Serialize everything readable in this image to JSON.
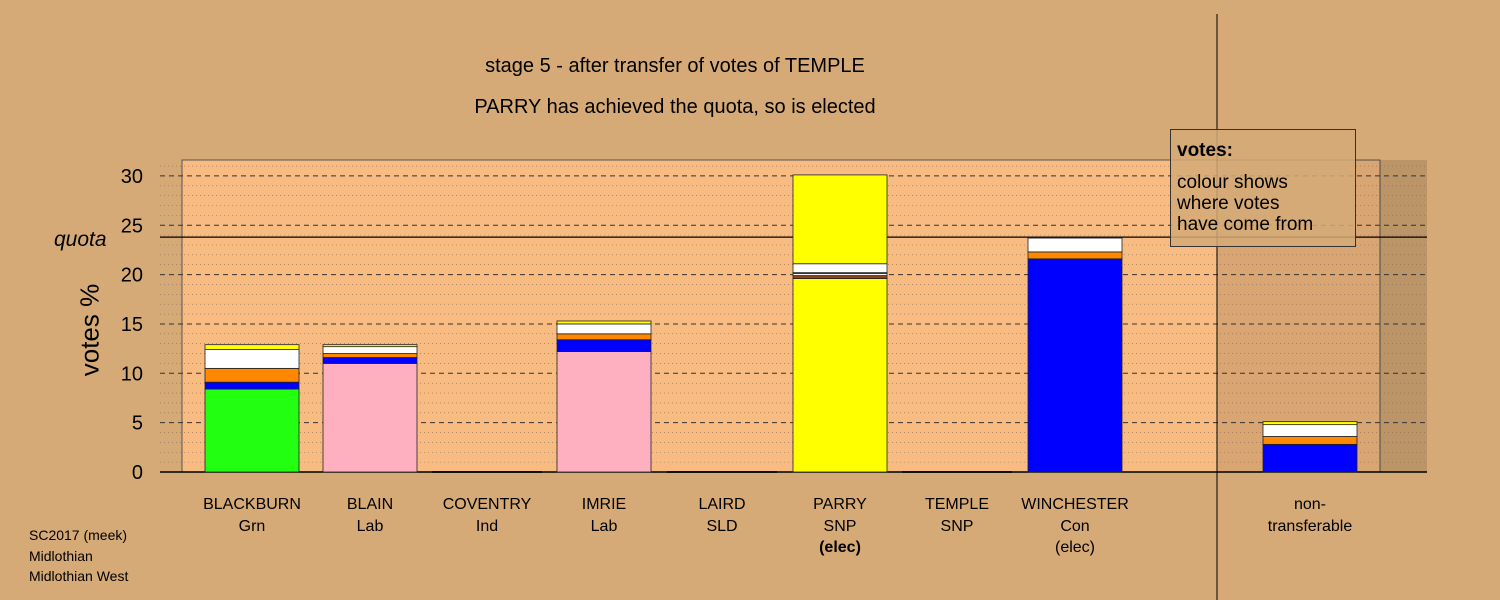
{
  "header": {
    "title": "stage 5 - after transfer of votes of TEMPLE",
    "subtitle": "PARRY has achieved the quota, so is elected"
  },
  "footer": {
    "line1": "SC2017 (meek)",
    "line2": "Midlothian",
    "line3": "Midlothian West"
  },
  "legend": {
    "title": "votes:",
    "text": [
      "colour shows",
      "where votes",
      "have come from"
    ]
  },
  "colors": {
    "background": "#d5aa77",
    "plot_area": "#f8bc82",
    "green": "#22ff11",
    "blue": "#0000ff",
    "orange": "#ff8800",
    "white": "#ffffff",
    "yellow": "#ffff00",
    "pink": "#ffb0c0",
    "brown": "#8b4513"
  },
  "chart_data": {
    "type": "bar",
    "stacked": true,
    "title": "stage 5 - after transfer of votes of TEMPLE",
    "subtitle": "PARRY has achieved the quota, so is elected",
    "ylabel": "votes %",
    "ylim": [
      0,
      32
    ],
    "yticks": [
      0,
      5,
      10,
      15,
      20,
      25,
      30
    ],
    "quota": 23.8,
    "quota_label": "quota",
    "grid": "dashed horizontal",
    "bars": [
      {
        "name": "BLACKBURN",
        "party": "Grn",
        "status": "",
        "segments": [
          {
            "color": "green",
            "value": 8.4
          },
          {
            "color": "blue",
            "value": 0.7
          },
          {
            "color": "orange",
            "value": 1.4
          },
          {
            "color": "white",
            "value": 1.9
          },
          {
            "color": "yellow",
            "value": 0.5
          }
        ]
      },
      {
        "name": "BLAIN",
        "party": "Lab",
        "status": "",
        "segments": [
          {
            "color": "pink",
            "value": 11.0
          },
          {
            "color": "blue",
            "value": 0.6
          },
          {
            "color": "orange",
            "value": 0.4
          },
          {
            "color": "white",
            "value": 0.7
          },
          {
            "color": "yellow",
            "value": 0.2
          }
        ]
      },
      {
        "name": "COVENTRY",
        "party": "Ind",
        "status": "",
        "segments": []
      },
      {
        "name": "IMRIE",
        "party": "Lab",
        "status": "",
        "segments": [
          {
            "color": "pink",
            "value": 12.2
          },
          {
            "color": "blue",
            "value": 1.2
          },
          {
            "color": "orange",
            "value": 0.6
          },
          {
            "color": "white",
            "value": 1.0
          },
          {
            "color": "yellow",
            "value": 0.3
          }
        ]
      },
      {
        "name": "LAIRD",
        "party": "SLD",
        "status": "",
        "segments": []
      },
      {
        "name": "PARRY",
        "party": "SNP",
        "status": "(elec)",
        "segments": [
          {
            "color": "yellow",
            "value": 19.6
          },
          {
            "color": "brown",
            "value": 0.3
          },
          {
            "color": "white",
            "value": 0.2
          },
          {
            "color": "orange",
            "value": 0.1
          },
          {
            "color": "white",
            "value": 0.9
          },
          {
            "color": "yellow",
            "value": 9.0
          }
        ]
      },
      {
        "name": "TEMPLE",
        "party": "SNP",
        "status": "",
        "segments": []
      },
      {
        "name": "WINCHESTER",
        "party": "Con",
        "status": "(elec)",
        "segments": [
          {
            "color": "blue",
            "value": 21.6
          },
          {
            "color": "orange",
            "value": 0.7
          },
          {
            "color": "white",
            "value": 1.4
          }
        ]
      },
      {
        "name": "non-",
        "party": "transferable",
        "status": "",
        "segments": [
          {
            "color": "blue",
            "value": 2.8
          },
          {
            "color": "orange",
            "value": 0.8
          },
          {
            "color": "white",
            "value": 1.2
          },
          {
            "color": "yellow",
            "value": 0.3
          }
        ]
      }
    ]
  }
}
